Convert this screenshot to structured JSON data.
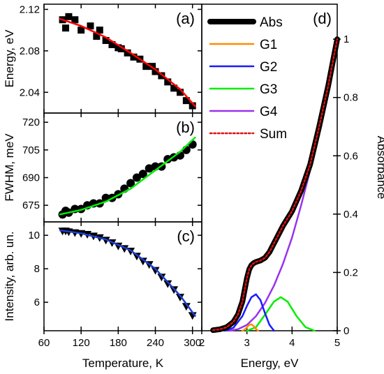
{
  "colors": {
    "abs": "#000000",
    "fit_a": "#ff0000",
    "fit_b": "#00ee00",
    "fit_c": "#1f3fd0",
    "G1": "#ff8c00",
    "G2": "#1a1aff",
    "G3": "#00ee00",
    "G4": "#9932ee",
    "Sum": "#dd1111"
  },
  "chart_data": [
    {
      "id": "a",
      "panel_label": "(a)",
      "type": "scatter",
      "title": "",
      "ylabel": "Energy, eV",
      "xlim": [
        60,
        315
      ],
      "ylim": [
        2.02,
        2.125
      ],
      "yticks": [
        2.04,
        2.08,
        2.12
      ],
      "ytick_labels": [
        "2.04",
        "2.08",
        "2.12"
      ],
      "points": {
        "x": [
          90,
          95,
          100,
          110,
          120,
          135,
          145,
          150,
          160,
          170,
          180,
          185,
          195,
          205,
          215,
          225,
          235,
          240,
          250,
          260,
          270,
          280,
          290,
          300
        ],
        "y": [
          2.11,
          2.102,
          2.113,
          2.11,
          2.1,
          2.104,
          2.094,
          2.1,
          2.09,
          2.086,
          2.083,
          2.082,
          2.078,
          2.074,
          2.072,
          2.065,
          2.065,
          2.06,
          2.056,
          2.05,
          2.044,
          2.04,
          2.032,
          2.027
        ]
      },
      "fit": {
        "x": [
          85,
          120,
          160,
          200,
          240,
          280,
          305
        ],
        "y": [
          2.111,
          2.104,
          2.093,
          2.078,
          2.062,
          2.043,
          2.026
        ]
      }
    },
    {
      "id": "b",
      "panel_label": "(b)",
      "type": "scatter",
      "title": "",
      "ylabel": "FWHM, meV",
      "xlim": [
        60,
        315
      ],
      "ylim": [
        666,
        725
      ],
      "yticks": [
        675,
        690,
        705,
        720
      ],
      "ytick_labels": [
        "675",
        "690",
        "705",
        "720"
      ],
      "points": {
        "x": [
          90,
          95,
          100,
          110,
          120,
          130,
          140,
          150,
          160,
          170,
          180,
          190,
          200,
          210,
          220,
          230,
          240,
          250,
          260,
          270,
          280,
          290,
          300
        ],
        "y": [
          670,
          672,
          671,
          673,
          673,
          675,
          676,
          676,
          679,
          679,
          681,
          684,
          687,
          690,
          692,
          695,
          696,
          696,
          700,
          701,
          702,
          705,
          708
        ]
      },
      "fit": {
        "x": [
          85,
          120,
          160,
          200,
          240,
          280,
          305
        ],
        "y": [
          670,
          672.5,
          677,
          684,
          694,
          704,
          712
        ]
      }
    },
    {
      "id": "c",
      "panel_label": "(c)",
      "type": "scatter",
      "title": "",
      "ylabel": "Intensity, arb. un.",
      "xlabel": "Temperature, K",
      "xlim": [
        60,
        315
      ],
      "ylim": [
        4.3,
        10.8
      ],
      "xticks": [
        60,
        120,
        180,
        240,
        300
      ],
      "xtick_labels": [
        "60",
        "120",
        "180",
        "240",
        "300"
      ],
      "yticks": [
        6,
        8,
        10
      ],
      "ytick_labels": [
        "6",
        "8",
        "10"
      ],
      "points": {
        "x": [
          90,
          95,
          100,
          110,
          120,
          130,
          140,
          150,
          160,
          170,
          180,
          190,
          200,
          210,
          220,
          230,
          240,
          250,
          260,
          270,
          280,
          290,
          300
        ],
        "y": [
          10.25,
          10.25,
          10.2,
          10.15,
          10.1,
          10.05,
          9.95,
          9.85,
          9.7,
          9.55,
          9.35,
          9.2,
          9.05,
          8.75,
          8.45,
          8.25,
          7.9,
          7.5,
          7.1,
          6.75,
          6.3,
          5.75,
          5.2
        ]
      },
      "fit": {
        "x": [
          85,
          120,
          160,
          200,
          240,
          280,
          305
        ],
        "y": [
          10.3,
          10.12,
          9.75,
          9.1,
          8.0,
          6.4,
          5.15
        ]
      }
    },
    {
      "id": "d",
      "panel_label": "(d)",
      "type": "line",
      "title": "",
      "xlabel": "Energy, eV",
      "ylabel": "Absorbance",
      "xlim": [
        2,
        5
      ],
      "ylim": [
        0,
        1.12
      ],
      "xticks": [
        2,
        3,
        4,
        5
      ],
      "xtick_labels": [
        "2",
        "3",
        "4",
        "5"
      ],
      "yticks": [
        0,
        0.2,
        0.4,
        0.6,
        0.8,
        1
      ],
      "ytick_labels": [
        "0",
        "0.2",
        "0.4",
        "0.6",
        "0.8",
        "1"
      ],
      "legend_position": "top-left",
      "series": [
        {
          "name": "Abs",
          "style": "thick-solid",
          "x": [
            2.25,
            2.4,
            2.55,
            2.7,
            2.8,
            2.9,
            2.95,
            3.0,
            3.05,
            3.1,
            3.15,
            3.2,
            3.3,
            3.4,
            3.5,
            3.6,
            3.7,
            3.8,
            3.9,
            4.0,
            4.2,
            4.4,
            4.6,
            4.8,
            5.0
          ],
          "y": [
            0.002,
            0.005,
            0.012,
            0.03,
            0.055,
            0.1,
            0.14,
            0.18,
            0.21,
            0.225,
            0.232,
            0.236,
            0.241,
            0.25,
            0.27,
            0.3,
            0.33,
            0.36,
            0.385,
            0.41,
            0.48,
            0.57,
            0.7,
            0.84,
            1.0
          ]
        },
        {
          "name": "G1",
          "style": "solid",
          "x": [
            2.9,
            2.95,
            3.0,
            3.05,
            3.1,
            3.15,
            3.2,
            3.25
          ],
          "y": [
            0.0,
            0.004,
            0.012,
            0.02,
            0.022,
            0.016,
            0.006,
            0.0
          ]
        },
        {
          "name": "G2",
          "style": "solid",
          "x": [
            2.5,
            2.7,
            2.9,
            3.0,
            3.1,
            3.2,
            3.3,
            3.4,
            3.5,
            3.6
          ],
          "y": [
            0.0,
            0.01,
            0.05,
            0.085,
            0.115,
            0.125,
            0.105,
            0.06,
            0.02,
            0.0
          ]
        },
        {
          "name": "G3",
          "style": "solid",
          "x": [
            3.0,
            3.2,
            3.4,
            3.6,
            3.75,
            3.9,
            4.1,
            4.3,
            4.5
          ],
          "y": [
            0.0,
            0.012,
            0.055,
            0.1,
            0.115,
            0.1,
            0.05,
            0.012,
            0.0
          ]
        },
        {
          "name": "G4",
          "style": "solid",
          "x": [
            2.6,
            2.8,
            3.0,
            3.2,
            3.4,
            3.6,
            3.8,
            4.0,
            4.2,
            4.4,
            4.6,
            4.8,
            5.0
          ],
          "y": [
            0.0,
            0.005,
            0.02,
            0.05,
            0.095,
            0.155,
            0.23,
            0.32,
            0.43,
            0.55,
            0.69,
            0.84,
            1.0
          ]
        },
        {
          "name": "Sum",
          "style": "dotted",
          "x": [
            2.25,
            2.4,
            2.55,
            2.7,
            2.8,
            2.9,
            2.95,
            3.0,
            3.05,
            3.1,
            3.15,
            3.2,
            3.3,
            3.4,
            3.5,
            3.6,
            3.7,
            3.8,
            3.9,
            4.0,
            4.2,
            4.4,
            4.6,
            4.8,
            5.0
          ],
          "y": [
            0.002,
            0.005,
            0.012,
            0.03,
            0.055,
            0.1,
            0.14,
            0.18,
            0.21,
            0.225,
            0.232,
            0.236,
            0.241,
            0.25,
            0.27,
            0.3,
            0.33,
            0.36,
            0.385,
            0.41,
            0.48,
            0.57,
            0.7,
            0.84,
            1.0
          ]
        }
      ]
    }
  ]
}
